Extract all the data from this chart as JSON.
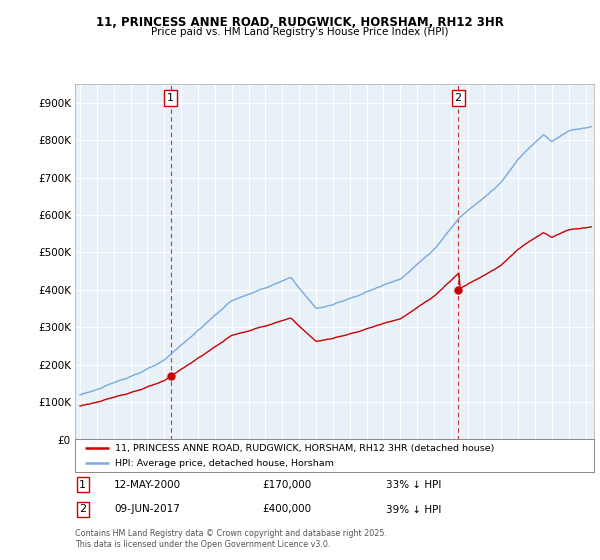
{
  "title_line1": "11, PRINCESS ANNE ROAD, RUDGWICK, HORSHAM, RH12 3HR",
  "title_line2": "Price paid vs. HM Land Registry's House Price Index (HPI)",
  "legend_label_red": "11, PRINCESS ANNE ROAD, RUDGWICK, HORSHAM, RH12 3HR (detached house)",
  "legend_label_blue": "HPI: Average price, detached house, Horsham",
  "annotation1_date": "12-MAY-2000",
  "annotation1_price": "£170,000",
  "annotation1_hpi": "33% ↓ HPI",
  "annotation2_date": "09-JUN-2017",
  "annotation2_price": "£400,000",
  "annotation2_hpi": "39% ↓ HPI",
  "footnote": "Contains HM Land Registry data © Crown copyright and database right 2025.\nThis data is licensed under the Open Government Licence v3.0.",
  "ylim": [
    0,
    950000
  ],
  "yticks": [
    0,
    100000,
    200000,
    300000,
    400000,
    500000,
    600000,
    700000,
    800000,
    900000
  ],
  "color_red": "#cc0000",
  "color_blue": "#7aaadd",
  "color_dashed": "#cc0000",
  "bg_chart": "#e8f0f8",
  "bg_fig": "#ffffff",
  "grid_color": "#ffffff"
}
